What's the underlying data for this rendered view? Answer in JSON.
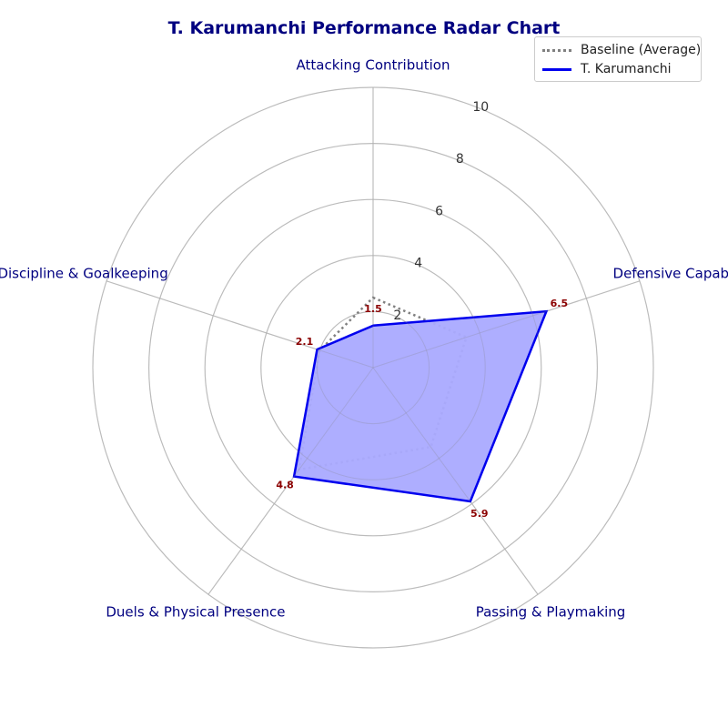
{
  "chart_data": {
    "type": "radar",
    "title": "T. Karumanchi Performance Radar Chart",
    "categories": [
      "Attacking Contribution",
      "Defensive Capability",
      "Passing & Playmaking",
      "Duels & Physical Presence",
      "Discipline & Goalkeeping"
    ],
    "r_ticks": [
      "2",
      "4",
      "6",
      "8",
      "10"
    ],
    "rlim": [
      0,
      10
    ],
    "series": [
      {
        "name": "Baseline (Average)",
        "values": [
          2.5,
          3.5,
          3.5,
          4.5,
          2.0
        ],
        "style": "dotted",
        "color": "#808080"
      },
      {
        "name": "T. Karumanchi",
        "values": [
          1.5,
          6.5,
          5.9,
          4.8,
          2.1
        ],
        "style": "solid",
        "color": "#0000ee",
        "fill": "#aaaaff"
      }
    ],
    "data_labels": [
      "1.5",
      "6.5",
      "5.9",
      "4.8",
      "2.1"
    ],
    "legend_position": "top-right",
    "grid": true
  }
}
